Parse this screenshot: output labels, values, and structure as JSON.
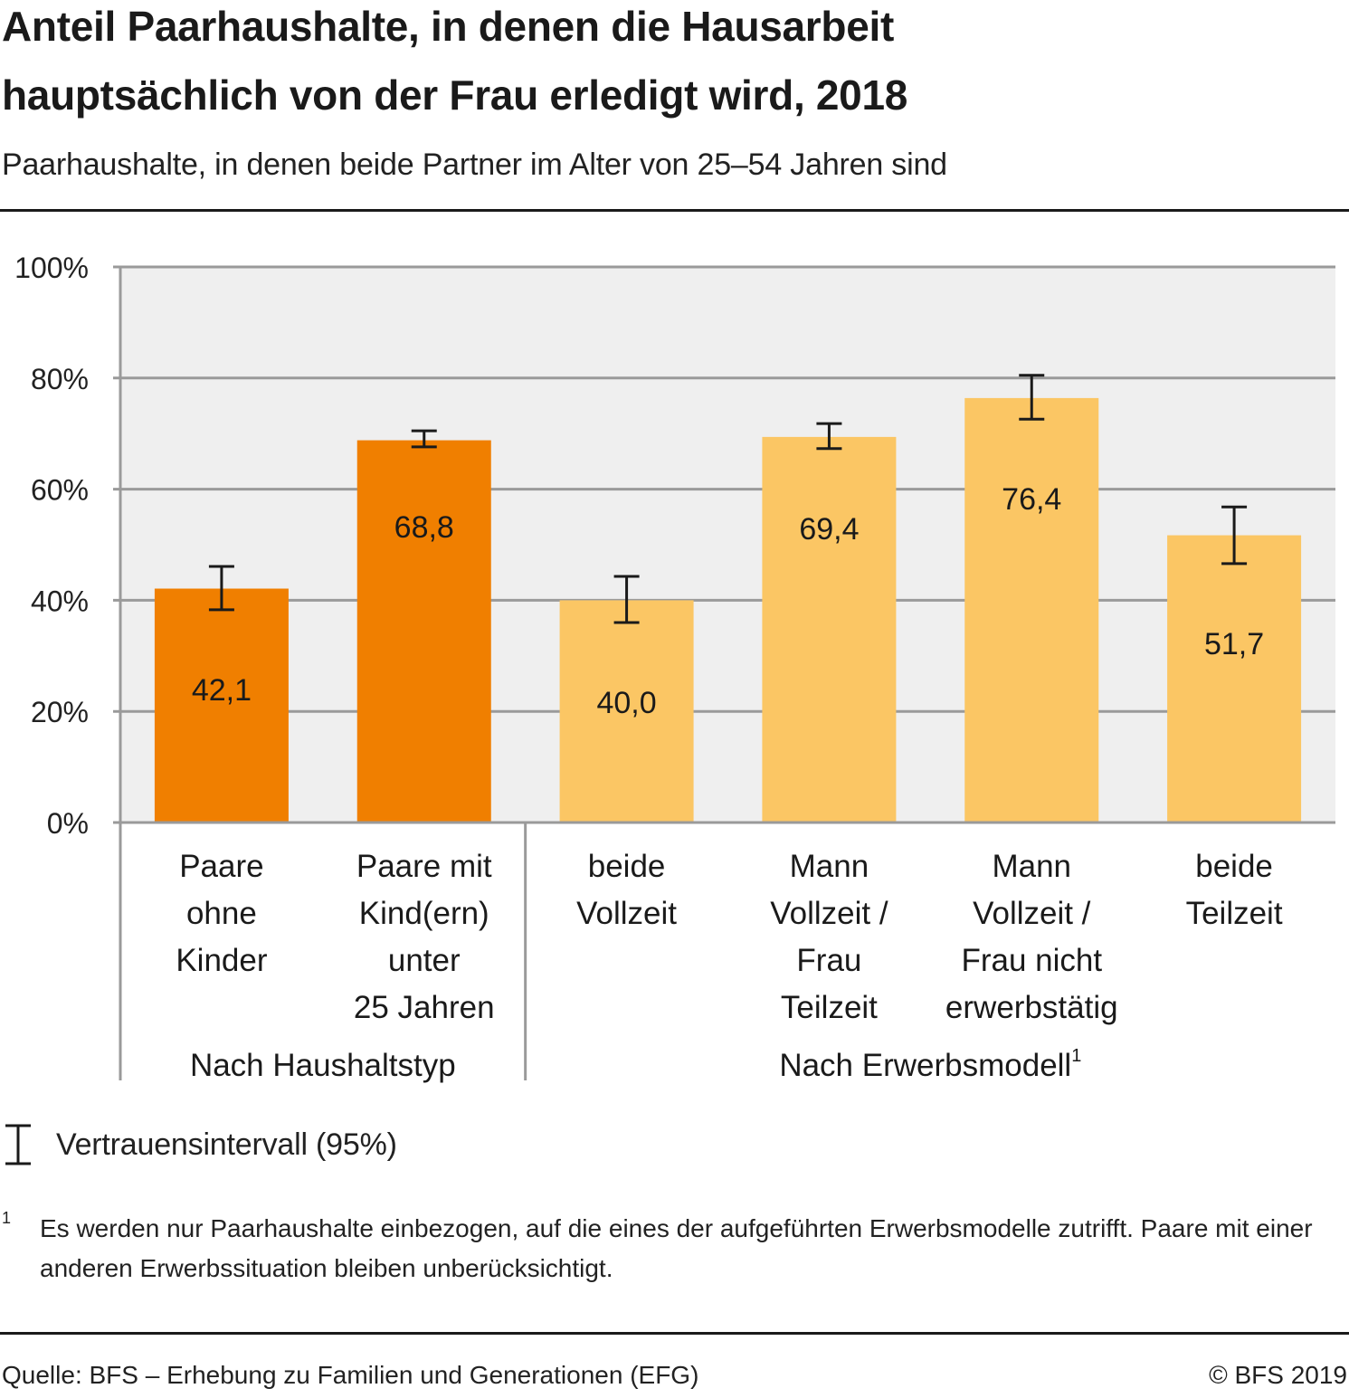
{
  "header": {
    "title_line1": "Anteil Paarhaushalte, in denen die Hausarbeit",
    "title_line2": "hauptsächlich von der Frau erledigt wird, 2018",
    "subtitle": "Paarhaushalte, in denen beide Partner im Alter von 25–54 Jahren sind"
  },
  "colors": {
    "haushaltstyp": "#f07f00",
    "erwerbsmodell": "#fbc664",
    "plot_background": "#efefef",
    "gridline": "#9a9a9a",
    "error_bar": "#1a1a1a"
  },
  "chart_data": {
    "type": "bar",
    "title": "Anteil Paarhaushalte, in denen die Hausarbeit hauptsächlich von der Frau erledigt wird, 2018",
    "subtitle": "Paarhaushalte, in denen beide Partner im Alter von 25–54 Jahren sind",
    "xlabel": "",
    "ylabel": "",
    "ylim": [
      0,
      100
    ],
    "yticks": [
      0,
      20,
      40,
      60,
      80,
      100
    ],
    "ytick_labels": [
      "0%",
      "20%",
      "40%",
      "60%",
      "80%",
      "100%"
    ],
    "grid": true,
    "categories": [
      [
        "Paare",
        "ohne",
        "Kinder"
      ],
      [
        "Paare mit",
        "Kind(ern)",
        "unter",
        "25 Jahren"
      ],
      [
        "beide",
        "Vollzeit"
      ],
      [
        "Mann",
        "Vollzeit /",
        "Frau",
        "Teilzeit"
      ],
      [
        "Mann",
        "Vollzeit /",
        "Frau nicht",
        "erwerbstätig"
      ],
      [
        "beide",
        "Teilzeit"
      ]
    ],
    "values": [
      42.1,
      68.8,
      40.0,
      69.4,
      76.4,
      51.7
    ],
    "value_labels": [
      "42,1",
      "68,8",
      "40,0",
      "69,4",
      "76,4",
      "51,7"
    ],
    "ci_lower": [
      38.3,
      67.6,
      36.0,
      67.3,
      72.6,
      46.6
    ],
    "ci_upper": [
      46.1,
      70.5,
      44.3,
      71.8,
      80.5,
      56.8
    ],
    "groups": [
      {
        "label": "Nach Haushaltstyp",
        "superscript": "",
        "members": [
          0,
          1
        ],
        "color_key": "haushaltstyp"
      },
      {
        "label": "Nach Erwerbsmodell",
        "superscript": "1",
        "members": [
          2,
          3,
          4,
          5
        ],
        "color_key": "erwerbsmodell"
      }
    ],
    "legend": [
      {
        "symbol": "error-bar",
        "label": "Vertrauensintervall (95%)"
      }
    ],
    "legend_position": "bottom-left"
  },
  "legend": {
    "label": "Vertrauensintervall (95%)"
  },
  "footnote": {
    "marker": "1",
    "text": "Es werden nur Paarhaushalte einbezogen, auf die eines der aufgeführten Erwerbsmodelle zutrifft. Paare mit einer anderen Erwerbssituation bleiben unberücksichtigt."
  },
  "footer": {
    "source": "Quelle: BFS – Erhebung zu Familien und Generationen (EFG)",
    "copyright": "© BFS 2019"
  }
}
